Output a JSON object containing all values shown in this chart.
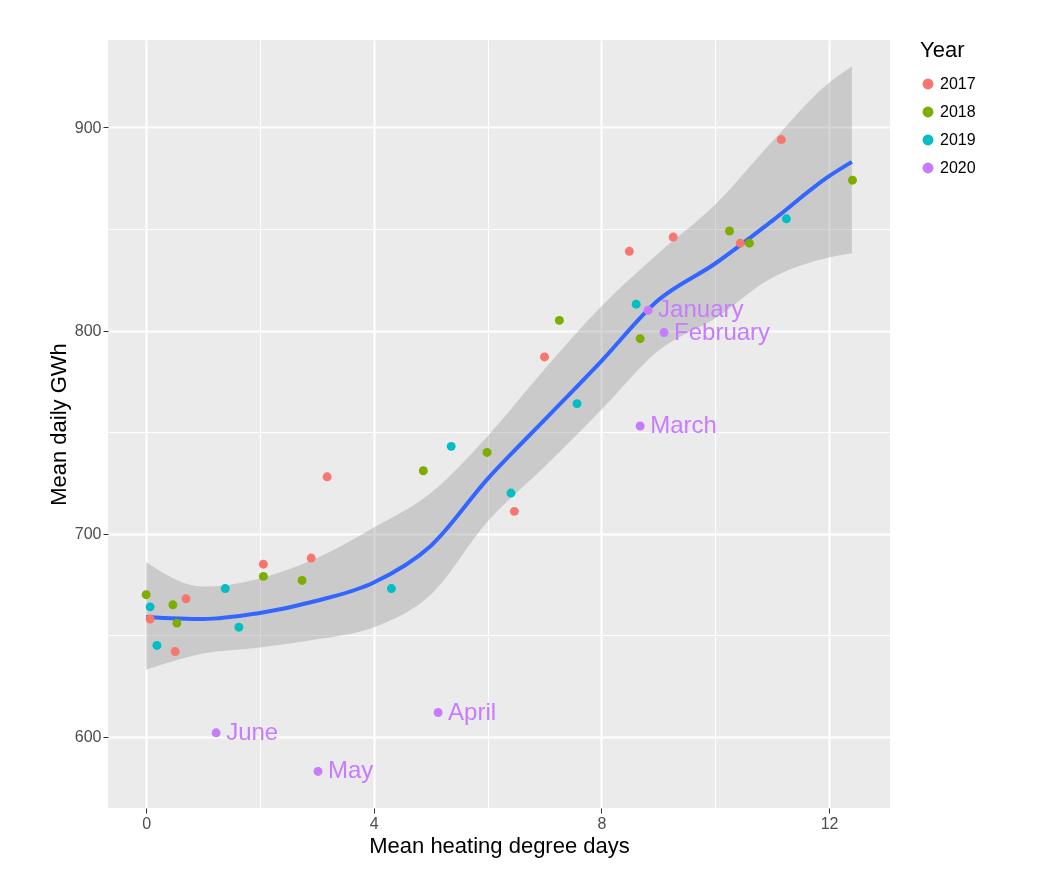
{
  "chart_data": {
    "type": "scatter",
    "xlabel": "Mean heating degree days",
    "ylabel": "Mean daily GWh",
    "legend_title": "Year",
    "xlim": [
      -0.67,
      13.07
    ],
    "ylim": [
      565,
      943
    ],
    "xticks": [
      0,
      {
        "value": 2,
        "label": null
      },
      4,
      {
        "value": 6,
        "label": null
      },
      8,
      {
        "value": 10,
        "label": null
      },
      12
    ],
    "yticks": [
      600,
      {
        "value": 650,
        "label": null
      },
      700,
      {
        "value": 750,
        "label": null
      },
      800,
      {
        "value": 850,
        "label": null
      },
      900
    ],
    "grid": true,
    "legend": "right",
    "series": [
      {
        "name": "2017",
        "color": "#f8766d",
        "marker": "circle",
        "x": [
          0.07,
          0.51,
          0.7,
          2.06,
          2.9,
          3.18,
          6.47,
          7.0,
          8.49,
          9.26,
          10.44,
          11.16
        ],
        "values": [
          658,
          642,
          668,
          685,
          688,
          728,
          711,
          787,
          839,
          846,
          843,
          894
        ]
      },
      {
        "name": "2018",
        "color": "#7cae00",
        "marker": "circle",
        "x": [
          0.0,
          0.47,
          0.54,
          2.06,
          2.74,
          4.87,
          5.99,
          7.26,
          8.68,
          10.25,
          10.6,
          12.41
        ],
        "values": [
          670,
          665,
          656,
          679,
          677,
          731,
          740,
          805,
          796,
          849,
          843,
          874
        ]
      },
      {
        "name": "2019",
        "color": "#00bfc4",
        "marker": "circle",
        "x": [
          0.07,
          0.19,
          1.39,
          1.63,
          4.31,
          5.36,
          6.41,
          7.57,
          8.61,
          11.25
        ],
        "values": [
          664,
          645,
          673,
          654,
          673,
          743,
          720,
          764,
          813,
          855
        ]
      },
      {
        "name": "2020",
        "color": "#c77cff",
        "marker": "circle",
        "x": [
          8.82,
          9.1,
          8.68,
          5.13,
          3.02,
          1.23
        ],
        "values": [
          810,
          799,
          753,
          612,
          583,
          602
        ]
      },
      {
        "type": "line",
        "color": "#3366ff",
        "marker": "none",
        "x": [
          0,
          1,
          2,
          3,
          4,
          5,
          6,
          7,
          8,
          9,
          10,
          11,
          12,
          12.4
        ],
        "values": [
          659,
          658,
          661,
          667,
          676,
          694,
          727,
          756,
          785,
          815,
          833,
          854,
          876,
          883
        ],
        "lower": [
          633,
          641,
          644,
          648,
          654,
          670,
          706,
          733,
          761,
          790,
          806,
          826,
          836,
          838
        ],
        "upper": [
          686,
          674,
          678,
          688,
          703,
          720,
          748,
          781,
          812,
          838,
          862,
          893,
          922,
          930
        ]
      }
    ],
    "annotations": [
      {
        "text": "January",
        "x": 8.82,
        "y": 810
      },
      {
        "text": "February",
        "x": 9.1,
        "y": 799
      },
      {
        "text": "March",
        "x": 8.68,
        "y": 753
      },
      {
        "text": "April",
        "x": 5.13,
        "y": 612
      },
      {
        "text": "May",
        "x": 3.02,
        "y": 583
      },
      {
        "text": "June",
        "x": 1.23,
        "y": 602
      }
    ]
  }
}
